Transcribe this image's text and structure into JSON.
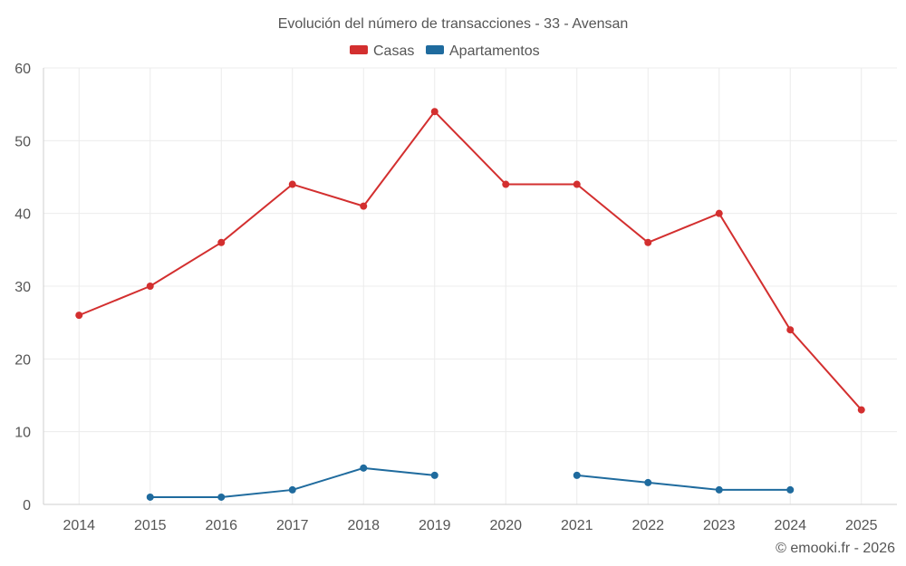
{
  "chart_data": {
    "type": "line",
    "title": "Evolución del número de transacciones - 33 - Avensan",
    "categories": [
      "2014",
      "2015",
      "2016",
      "2017",
      "2018",
      "2019",
      "2020",
      "2021",
      "2022",
      "2023",
      "2024",
      "2025"
    ],
    "series": [
      {
        "name": "Casas",
        "color": "#d32f2f",
        "values": [
          26,
          30,
          36,
          44,
          41,
          54,
          44,
          44,
          36,
          40,
          24,
          13
        ]
      },
      {
        "name": "Apartamentos",
        "color": "#1f6b9e",
        "values": [
          null,
          1,
          1,
          2,
          5,
          4,
          null,
          4,
          3,
          2,
          2,
          null
        ]
      }
    ],
    "yticks": [
      0,
      10,
      20,
      30,
      40,
      50,
      60
    ],
    "ylim": [
      0,
      60
    ],
    "grid": true,
    "legend_position": "top-center",
    "credit": "© emooki.fr - 2026"
  }
}
